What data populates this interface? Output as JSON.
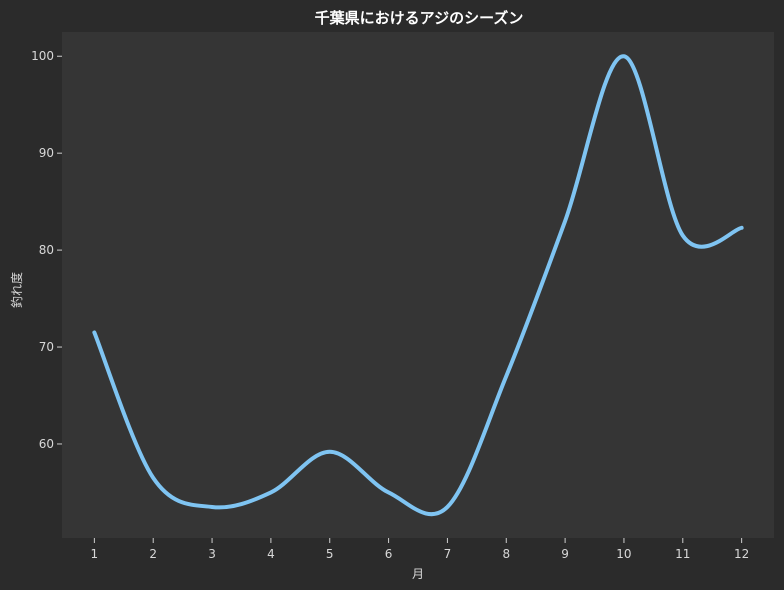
{
  "chart_data": {
    "type": "line",
    "title": "千葉県におけるアジのシーズン",
    "xlabel": "月",
    "ylabel": "釣れ度",
    "x": [
      1,
      2,
      3,
      4,
      5,
      6,
      7,
      8,
      9,
      10,
      11,
      12
    ],
    "series": [
      {
        "values": [
          71.5,
          56.5,
          53.5,
          55,
          59.2,
          55,
          53.5,
          67,
          83,
          100,
          81.5,
          82.3
        ]
      }
    ],
    "xlim": [
      0.45,
      12.55
    ],
    "ylim": [
      50.3,
      102.5
    ],
    "xticks": [
      1,
      2,
      3,
      4,
      5,
      6,
      7,
      8,
      9,
      10,
      11,
      12
    ],
    "yticks": [
      60,
      70,
      80,
      90,
      100
    ],
    "grid": false,
    "line_color": "#7fc4f2",
    "plot_background": "#353535",
    "page_background": "#2b2b2b"
  }
}
